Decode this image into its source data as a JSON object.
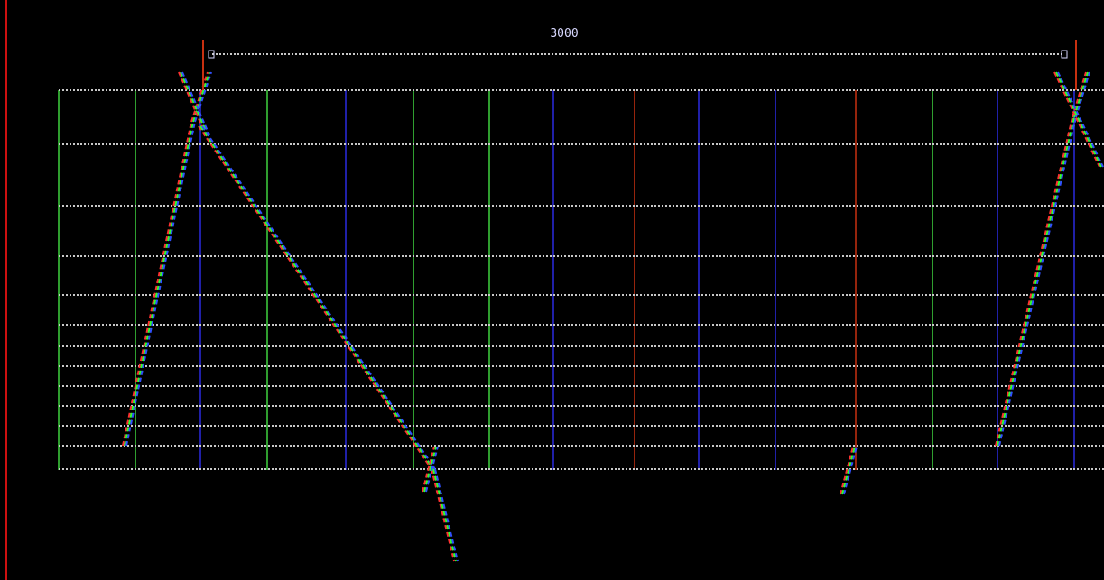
{
  "annotation": {
    "span_label": "3000"
  },
  "colors": {
    "background": "#000000",
    "border": "#cc1010",
    "gridline_green": "#3fd23f",
    "gridline_blue": "#2a2ae0",
    "gridline_red": "#c83010",
    "dotted_line": "#c8c8c8",
    "trace_fringe_red": "#ff3030",
    "trace_fringe_green": "#30ff30",
    "trace_fringe_blue": "#3050ff",
    "label_text": "#d8d8ff"
  },
  "vertical_gridline_colors": [
    "green",
    "green",
    "blue",
    "green",
    "blue",
    "green",
    "green",
    "blue",
    "red",
    "blue",
    "blue",
    "red",
    "green",
    "blue",
    "blue"
  ]
}
